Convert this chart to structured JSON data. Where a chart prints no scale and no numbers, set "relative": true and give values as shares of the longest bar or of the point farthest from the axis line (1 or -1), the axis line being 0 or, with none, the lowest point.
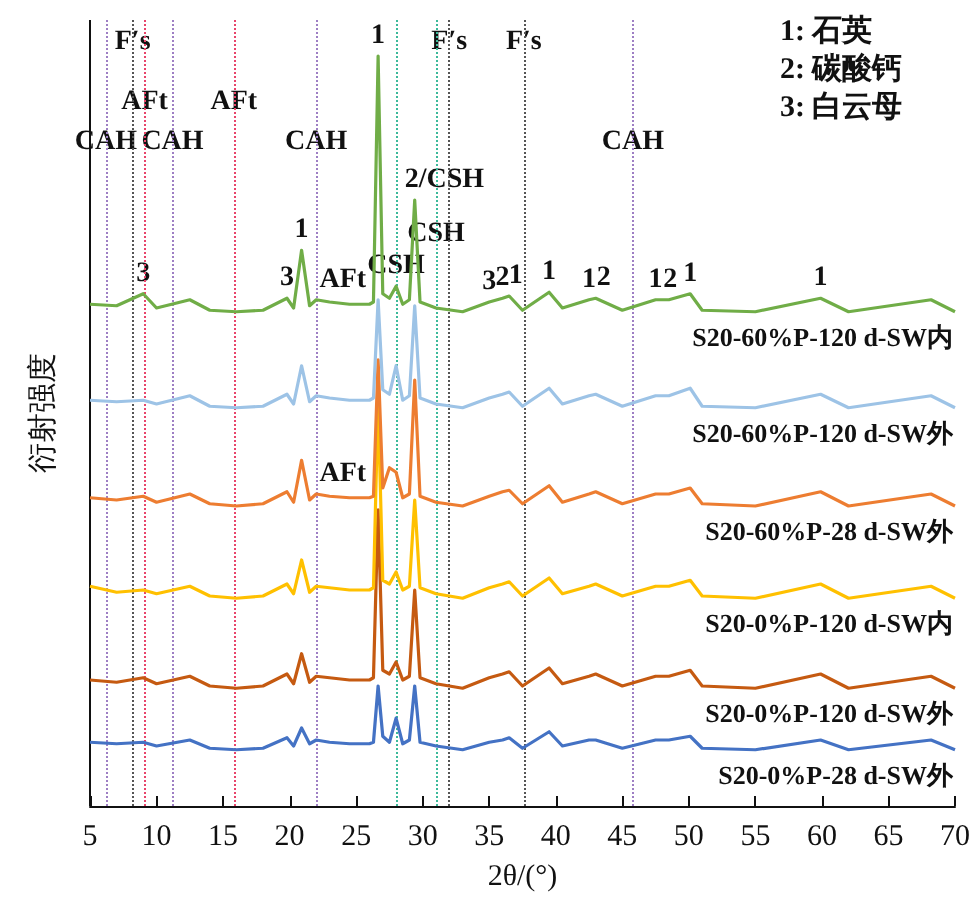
{
  "chart_data": {
    "type": "line",
    "relative": true,
    "xlabel": "2θ/(°)",
    "ylabel": "衍射强度",
    "xlim": [
      5,
      70
    ],
    "xticks": [
      5,
      10,
      15,
      20,
      25,
      30,
      35,
      40,
      45,
      50,
      55,
      60,
      65,
      70
    ],
    "legend": false,
    "grid": false,
    "marker": "none",
    "line_style": "solid",
    "x": [
      5,
      7,
      9,
      10,
      12.5,
      14,
      16,
      18,
      19.8,
      20.3,
      20.9,
      21.5,
      22,
      23,
      24.5,
      26,
      26.3,
      26.65,
      27,
      27.5,
      28,
      28.5,
      29,
      29.4,
      29.8,
      31,
      33,
      35,
      36,
      36.5,
      37.5,
      39.5,
      40.5,
      42.5,
      43,
      45,
      47.5,
      48.5,
      50.1,
      51,
      55,
      59.9,
      62,
      68.2,
      70
    ],
    "series": [
      {
        "name": "S20-60%P-120 d-SW内",
        "color": "#70ad47",
        "values": [
          0.669,
          0.667,
          0.683,
          0.664,
          0.675,
          0.661,
          0.659,
          0.661,
          0.677,
          0.664,
          0.741,
          0.667,
          0.675,
          0.672,
          0.669,
          0.669,
          0.672,
          1,
          0.683,
          0.677,
          0.693,
          0.669,
          0.675,
          0.808,
          0.672,
          0.664,
          0.659,
          0.672,
          0.677,
          0.68,
          0.661,
          0.685,
          0.664,
          0.675,
          0.677,
          0.661,
          0.675,
          0.675,
          0.683,
          0.661,
          0.659,
          0.677,
          0.659,
          0.675,
          0.659
        ]
      },
      {
        "name": "S20-60%P-120 d-SW外",
        "color": "#9dc3e6",
        "values": [
          0.541,
          0.539,
          0.541,
          0.536,
          0.547,
          0.533,
          0.531,
          0.533,
          0.549,
          0.536,
          0.587,
          0.539,
          0.547,
          0.544,
          0.541,
          0.541,
          0.544,
          0.675,
          0.555,
          0.549,
          0.587,
          0.541,
          0.547,
          0.667,
          0.544,
          0.536,
          0.531,
          0.544,
          0.549,
          0.552,
          0.533,
          0.557,
          0.536,
          0.547,
          0.549,
          0.533,
          0.547,
          0.547,
          0.557,
          0.533,
          0.531,
          0.549,
          0.531,
          0.547,
          0.531
        ]
      },
      {
        "name": "S20-60%P-28 d-SW外",
        "color": "#ed7d31",
        "values": [
          0.411,
          0.408,
          0.413,
          0.405,
          0.416,
          0.403,
          0.4,
          0.403,
          0.419,
          0.405,
          0.461,
          0.408,
          0.416,
          0.413,
          0.411,
          0.411,
          0.413,
          0.595,
          0.424,
          0.451,
          0.445,
          0.411,
          0.416,
          0.568,
          0.413,
          0.405,
          0.4,
          0.413,
          0.419,
          0.421,
          0.403,
          0.427,
          0.405,
          0.416,
          0.419,
          0.403,
          0.416,
          0.416,
          0.424,
          0.403,
          0.4,
          0.419,
          0.4,
          0.416,
          0.4
        ]
      },
      {
        "name": "S20-0%P-120 d-SW内",
        "color": "#ffc000",
        "values": [
          0.293,
          0.285,
          0.288,
          0.283,
          0.293,
          0.28,
          0.277,
          0.28,
          0.296,
          0.283,
          0.328,
          0.285,
          0.293,
          0.291,
          0.288,
          0.288,
          0.291,
          0.541,
          0.301,
          0.296,
          0.312,
          0.288,
          0.293,
          0.408,
          0.291,
          0.283,
          0.277,
          0.291,
          0.296,
          0.299,
          0.28,
          0.304,
          0.283,
          0.293,
          0.296,
          0.28,
          0.293,
          0.293,
          0.301,
          0.28,
          0.277,
          0.296,
          0.277,
          0.293,
          0.277
        ]
      },
      {
        "name": "S20-0%P-120 d-SW外",
        "color": "#c55a11",
        "values": [
          0.168,
          0.165,
          0.171,
          0.163,
          0.173,
          0.16,
          0.157,
          0.16,
          0.176,
          0.163,
          0.203,
          0.165,
          0.173,
          0.171,
          0.168,
          0.168,
          0.171,
          0.395,
          0.181,
          0.176,
          0.192,
          0.168,
          0.173,
          0.288,
          0.171,
          0.163,
          0.157,
          0.171,
          0.176,
          0.179,
          0.16,
          0.184,
          0.163,
          0.173,
          0.176,
          0.16,
          0.173,
          0.173,
          0.181,
          0.16,
          0.157,
          0.176,
          0.157,
          0.173,
          0.157
        ]
      },
      {
        "name": "S20-0%P-28 d-SW外",
        "color": "#4472c4",
        "values": [
          0.085,
          0.083,
          0.085,
          0.08,
          0.088,
          0.077,
          0.075,
          0.077,
          0.091,
          0.08,
          0.104,
          0.083,
          0.088,
          0.085,
          0.083,
          0.083,
          0.085,
          0.16,
          0.093,
          0.085,
          0.117,
          0.083,
          0.088,
          0.16,
          0.085,
          0.08,
          0.075,
          0.085,
          0.088,
          0.091,
          0.077,
          0.099,
          0.08,
          0.088,
          0.088,
          0.077,
          0.088,
          0.088,
          0.093,
          0.077,
          0.075,
          0.088,
          0.075,
          0.088,
          0.075
        ]
      }
    ],
    "ref_lines": [
      {
        "axis": "x",
        "value": 6.2,
        "label": "CAH",
        "color": "#9e7fc4",
        "line_style": "dotted"
      },
      {
        "axis": "x",
        "value": 8.2,
        "label": "F′s",
        "color": "#555555",
        "line_style": "dotted"
      },
      {
        "axis": "x",
        "value": 9.1,
        "label": "AFt",
        "color": "#e8456b",
        "line_style": "dotted"
      },
      {
        "axis": "x",
        "value": 11.2,
        "label": "CAH",
        "color": "#9e7fc4",
        "line_style": "dotted"
      },
      {
        "axis": "x",
        "value": 15.8,
        "label": "AFt",
        "color": "#e8456b",
        "line_style": "dotted"
      },
      {
        "axis": "x",
        "value": 22,
        "label": "CAH",
        "color": "#9e7fc4",
        "line_style": "dotted"
      },
      {
        "axis": "x",
        "value": 28,
        "label": "CSH",
        "color": "#3cb99a",
        "line_style": "dotted"
      },
      {
        "axis": "x",
        "value": 31,
        "label": "CSH",
        "color": "#3cb99a",
        "line_style": "dotted"
      },
      {
        "axis": "x",
        "value": 32,
        "label": "F′s",
        "color": "#555555",
        "line_style": "dotted"
      },
      {
        "axis": "x",
        "value": 37.6,
        "label": "F′s",
        "color": "#555555",
        "line_style": "dotted"
      },
      {
        "axis": "x",
        "value": 45.8,
        "label": "CAH",
        "color": "#9e7fc4",
        "line_style": "dotted"
      }
    ],
    "annotations": [
      "1: 石英",
      "2: 碳酸钙",
      "3: 白云母",
      {
        "text": "3",
        "x": 9,
        "y": 0.683
      },
      {
        "text": "3",
        "x": 19.8,
        "y": 0.677
      },
      {
        "text": "1",
        "x": 20.9,
        "y": 0.741
      },
      {
        "text": "AFt",
        "x": 23,
        "y": 0.675
      },
      {
        "text": "1",
        "x": 26.65,
        "y": 1
      },
      {
        "text": "2/CSH",
        "x": 29.4,
        "y": 0.808
      },
      {
        "text": "3",
        "x": 35,
        "y": 0.672
      },
      {
        "text": "2",
        "x": 36,
        "y": 0.677
      },
      {
        "text": "1",
        "x": 37,
        "y": 0.68
      },
      {
        "text": "1",
        "x": 39.5,
        "y": 0.685
      },
      {
        "text": "1",
        "x": 42.5,
        "y": 0.675
      },
      {
        "text": "2",
        "x": 43.6,
        "y": 0.677
      },
      {
        "text": "1",
        "x": 47.5,
        "y": 0.675
      },
      {
        "text": "2",
        "x": 48.6,
        "y": 0.675
      },
      {
        "text": "1",
        "x": 50.1,
        "y": 0.683
      },
      {
        "text": "1",
        "x": 59.9,
        "y": 0.677
      },
      {
        "text": "AFt",
        "x": 23,
        "y": 0.416
      }
    ]
  }
}
